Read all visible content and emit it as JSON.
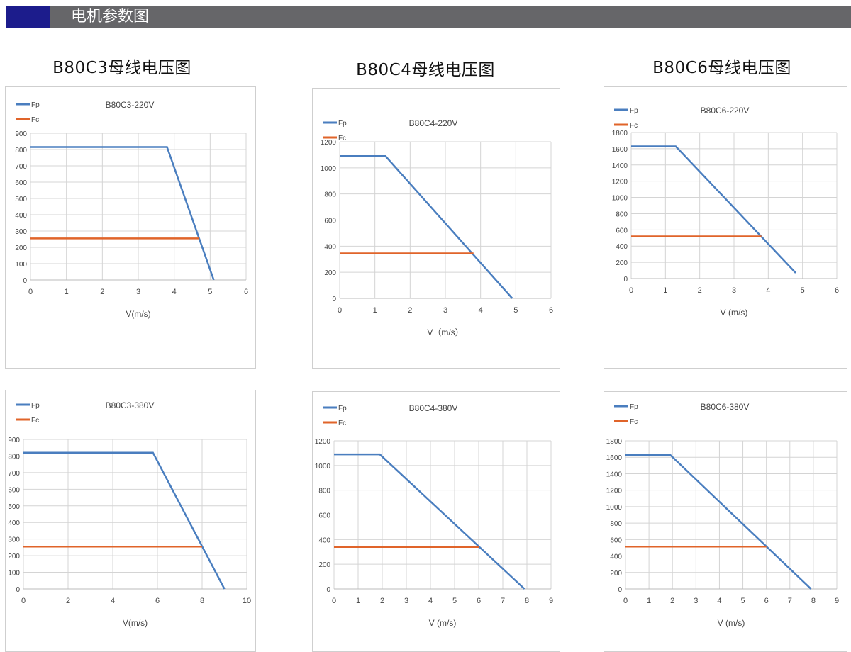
{
  "header": {
    "title": "电机参数图",
    "accent_color": "#1c1c8c",
    "bar_color": "#666669"
  },
  "groups": [
    {
      "title": "B80C3母线电压图"
    },
    {
      "title": "B80C4母线电压图"
    },
    {
      "title": "B80C6母线电压图"
    }
  ],
  "colors": {
    "Fp": "#4a7ebf",
    "Fc": "#e0642a"
  },
  "chart_data": [
    {
      "type": "line",
      "title": "B80C3-220V",
      "xlabel": "V(m/s)",
      "ylabel": "",
      "xlim": [
        0,
        6
      ],
      "xstep": 1,
      "ylim": [
        0,
        900
      ],
      "ystep": 100,
      "grid": true,
      "legend": "top-left",
      "series": [
        {
          "name": "Fp",
          "points": [
            [
              0,
              815
            ],
            [
              3.8,
              815
            ],
            [
              5.1,
              0
            ]
          ]
        },
        {
          "name": "Fc",
          "points": [
            [
              0,
              255
            ],
            [
              4.7,
              255
            ]
          ]
        }
      ]
    },
    {
      "type": "line",
      "title": "B80C4-220V",
      "xlabel": "V（m/s）",
      "ylabel": "",
      "xlim": [
        0,
        6
      ],
      "xstep": 1,
      "ylim": [
        0,
        1200
      ],
      "ystep": 200,
      "grid": true,
      "legend": "top-left",
      "series": [
        {
          "name": "Fp",
          "points": [
            [
              0,
              1090
            ],
            [
              1.3,
              1090
            ],
            [
              4.9,
              0
            ]
          ]
        },
        {
          "name": "Fc",
          "points": [
            [
              0,
              345
            ],
            [
              3.8,
              345
            ]
          ]
        }
      ]
    },
    {
      "type": "line",
      "title": "B80C6-220V",
      "xlabel": "V (m/s)",
      "ylabel": "",
      "xlim": [
        0,
        6
      ],
      "xstep": 1,
      "ylim": [
        0,
        1800
      ],
      "ystep": 200,
      "grid": true,
      "legend": "top-left",
      "series": [
        {
          "name": "Fp",
          "points": [
            [
              0,
              1630
            ],
            [
              1.3,
              1630
            ],
            [
              4.8,
              70
            ]
          ]
        },
        {
          "name": "Fc",
          "points": [
            [
              0,
              520
            ],
            [
              3.8,
              520
            ]
          ]
        }
      ]
    },
    {
      "type": "line",
      "title": "B80C3-380V",
      "xlabel": "V(m/s)",
      "ylabel": "",
      "xlim": [
        0,
        10
      ],
      "xstep": 2,
      "ylim": [
        0,
        900
      ],
      "ystep": 100,
      "grid": true,
      "legend": "top-left",
      "series": [
        {
          "name": "Fp",
          "points": [
            [
              0,
              820
            ],
            [
              5.8,
              820
            ],
            [
              9,
              0
            ]
          ]
        },
        {
          "name": "Fc",
          "points": [
            [
              0,
              255
            ],
            [
              8,
              255
            ]
          ]
        }
      ]
    },
    {
      "type": "line",
      "title": "B80C4-380V",
      "xlabel": "V (m/s)",
      "ylabel": "",
      "xlim": [
        0,
        9
      ],
      "xstep": 1,
      "ylim": [
        0,
        1200
      ],
      "ystep": 200,
      "grid": true,
      "legend": "top-left",
      "series": [
        {
          "name": "Fp",
          "points": [
            [
              0,
              1090
            ],
            [
              1.9,
              1090
            ],
            [
              7.9,
              0
            ]
          ]
        },
        {
          "name": "Fc",
          "points": [
            [
              0,
              340
            ],
            [
              6,
              340
            ]
          ]
        }
      ]
    },
    {
      "type": "line",
      "title": "B80C6-380V",
      "xlabel": "V (m/s)",
      "ylabel": "",
      "xlim": [
        0,
        9
      ],
      "xstep": 1,
      "ylim": [
        0,
        1800
      ],
      "ystep": 200,
      "grid": true,
      "legend": "top-left",
      "series": [
        {
          "name": "Fp",
          "points": [
            [
              0,
              1630
            ],
            [
              1.9,
              1630
            ],
            [
              7.9,
              0
            ]
          ]
        },
        {
          "name": "Fc",
          "points": [
            [
              0,
              515
            ],
            [
              6,
              515
            ]
          ]
        }
      ]
    }
  ]
}
